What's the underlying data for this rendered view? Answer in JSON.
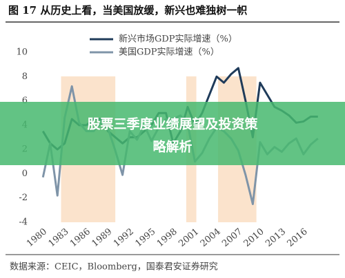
{
  "chart_data": {
    "type": "line",
    "title": "图 17 从历史上看，当美国放缓，新兴也难独树一帜",
    "x": [
      1980,
      1981,
      1982,
      1983,
      1984,
      1985,
      1986,
      1987,
      1988,
      1989,
      1990,
      1991,
      1992,
      1993,
      1994,
      1995,
      1996,
      1997,
      1998,
      1999,
      2000,
      2001,
      2002,
      2003,
      2004,
      2005,
      2006,
      2007,
      2008,
      2009,
      2010,
      2011,
      2012,
      2013,
      2014,
      2015,
      2016,
      2017,
      2018
    ],
    "series": [
      {
        "name": "新兴市场GDP实际增速（%）",
        "color": "#1f3b5a",
        "values": [
          3.5,
          2.5,
          2,
          2.5,
          4.5,
          4,
          4,
          4.5,
          4.5,
          3.5,
          3,
          2.5,
          3,
          3,
          3.5,
          4,
          5,
          5,
          2.5,
          3.5,
          5.5,
          4,
          5,
          6.5,
          8,
          7.5,
          8.2,
          8.7,
          6,
          3,
          7.5,
          6.5,
          5.5,
          5.2,
          4.8,
          4.2,
          4.3,
          4.7,
          4.7
        ]
      },
      {
        "name": "美国GDP实际增速（%）",
        "color": "#7f94a8",
        "values": [
          -0.3,
          2.5,
          -1.8,
          4.6,
          7.2,
          4.2,
          3.5,
          3.5,
          4.2,
          3.7,
          1.9,
          -0.1,
          3.5,
          2.8,
          4,
          2.7,
          3.8,
          4.5,
          4.5,
          4.8,
          4.1,
          1,
          1.7,
          2.9,
          3.8,
          3.5,
          2.9,
          1.9,
          -0.1,
          -2.5,
          2.6,
          1.6,
          2.2,
          1.8,
          2.5,
          2.9,
          1.6,
          2.4,
          2.9
        ]
      }
    ],
    "shaded_x": [
      [
        1982.5,
        1990
      ],
      [
        1999.8,
        2001.2
      ],
      [
        2004.2,
        2009.5
      ]
    ],
    "shade_color": "#fbe3cc",
    "xlim": [
      1979.5,
      2018.5
    ],
    "xticks": [
      1980,
      1983,
      1986,
      1989,
      1992,
      1995,
      1998,
      2001,
      2004,
      2007,
      2010,
      2013,
      2016
    ],
    "ylim": [
      -4,
      10
    ],
    "yticks": [
      -4,
      -2,
      0,
      2,
      4,
      6,
      8,
      10
    ],
    "legend": "upper center",
    "source": "数据来源：CEIC，Bloomberg，国泰君安证券研究"
  },
  "overlay": {
    "lines": [
      "股票三季度业绩展望及投资策",
      "略解析"
    ]
  }
}
